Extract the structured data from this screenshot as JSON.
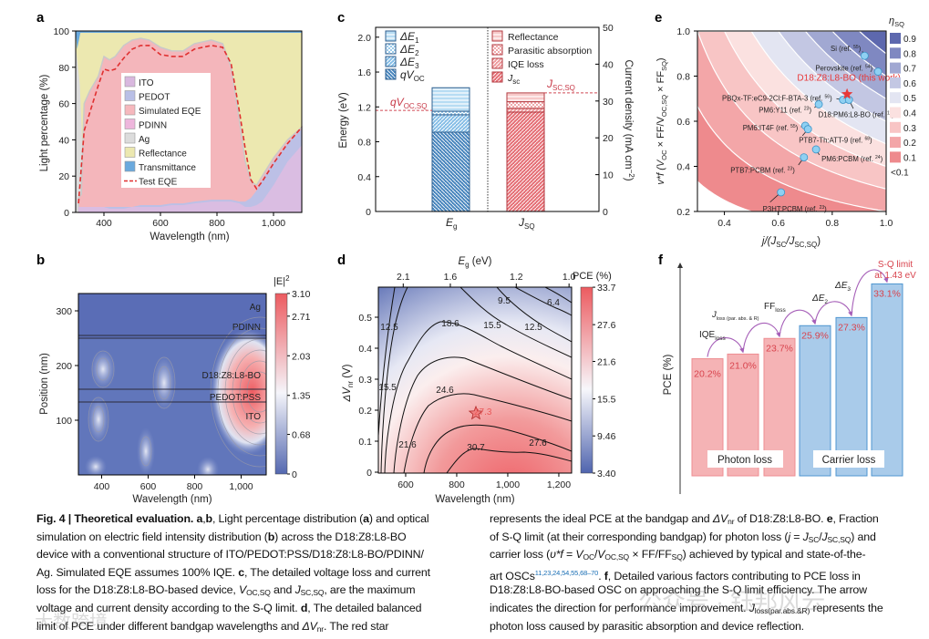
{
  "panels": {
    "a": "a",
    "b": "b",
    "c": "c",
    "d": "d",
    "e": "e",
    "f": "f"
  },
  "chart_data": [
    {
      "panel": "a",
      "type": "area",
      "xlabel": "Wavelength (nm)",
      "ylabel": "Light percentage (%)",
      "xlim": [
        300,
        1100
      ],
      "ylim": [
        0,
        100
      ],
      "xticks": [
        "400",
        "600",
        "800",
        "1,000"
      ],
      "xtick_values": [
        400,
        600,
        800,
        1000
      ],
      "yticks": [
        "0",
        "20",
        "40",
        "60",
        "80",
        "100"
      ],
      "ytick_values": [
        0,
        20,
        40,
        60,
        80,
        100
      ],
      "legend": [
        "ITO",
        "PEDOT",
        "Simulated EQE",
        "PDINN",
        "Ag",
        "Reflectance",
        "Transmittance",
        "Test EQE"
      ],
      "legend_colors": [
        "#d9b8df",
        "#b9bfe6",
        "#f6b8bd",
        "#eeb6dc",
        "#dcdcdc",
        "#ece8b0",
        "#6aa9dd",
        "#e03030"
      ],
      "x": [
        310,
        320,
        330,
        350,
        380,
        400,
        420,
        440,
        470,
        500,
        530,
        560,
        600,
        640,
        680,
        720,
        780,
        820,
        850,
        880,
        900,
        920,
        940,
        960,
        1000,
        1050,
        1100
      ],
      "series": [
        {
          "name": "Simulated EQE",
          "values": [
            8,
            10,
            60,
            67,
            75,
            86,
            84,
            86,
            92,
            95,
            96,
            95,
            91,
            89,
            89,
            93,
            95,
            93,
            80,
            50,
            28,
            17,
            15,
            20,
            30,
            40,
            47
          ]
        },
        {
          "name": "Test EQE",
          "values": [
            5,
            25,
            45,
            55,
            70,
            79,
            78,
            79,
            85,
            90,
            92,
            92,
            87,
            86,
            86,
            90,
            92,
            91,
            82,
            55,
            35,
            18,
            13,
            17,
            27,
            38,
            47
          ]
        },
        {
          "name": "PEDOT",
          "values": [
            3,
            3,
            3,
            3,
            3,
            3,
            3,
            3,
            3,
            3,
            4,
            4,
            4,
            5,
            5,
            6,
            7,
            7,
            7,
            6,
            6,
            8,
            12,
            18,
            28,
            38,
            46
          ]
        },
        {
          "name": "ITO",
          "values": [
            3,
            3,
            3,
            3,
            3,
            3,
            2,
            2,
            2,
            3,
            3,
            3,
            3,
            4,
            4,
            5,
            6,
            6,
            6,
            5,
            3,
            3,
            4,
            6,
            15,
            28,
            37
          ]
        },
        {
          "name": "Reflectance",
          "top": 99
        },
        {
          "name": "Transmittance",
          "top": 100
        }
      ]
    },
    {
      "panel": "b",
      "type": "heatmap",
      "xlabel": "Wavelength (nm)",
      "ylabel": "Position (nm)",
      "xticks": [
        "400",
        "600",
        "800",
        "1,000"
      ],
      "yticks": [
        "100",
        "200",
        "300"
      ],
      "colorbar_label": "|E|",
      "colorbar_sup": "2",
      "colorbar_ticks": [
        "3.10",
        "2.71",
        "2.03",
        "1.35",
        "0.68",
        "0"
      ],
      "colorbar_values": [
        3.1,
        2.71,
        2.03,
        1.35,
        0.68,
        0
      ],
      "layers": [
        "Ag",
        "PDINN",
        "D18:Z8:L8-BO",
        "PEDOT:PSS",
        "ITO"
      ],
      "layer_boundaries_nm": [
        255,
        250,
        157,
        133
      ],
      "max_region": {
        "wavelength": 1030,
        "position": 160,
        "value": 3.1
      }
    },
    {
      "panel": "c",
      "type": "bar",
      "ylabel": "Energy (eV)",
      "y2label": "Current density (mA cm",
      "y2label_sup": "−2",
      "y2label_end": ")",
      "yticks": [
        "0",
        "0.4",
        "0.8",
        "1.2",
        "1.6",
        "2.0"
      ],
      "ytick_values": [
        0,
        0.4,
        0.8,
        1.2,
        1.6,
        2.0
      ],
      "y2ticks": [
        "0",
        "10",
        "20",
        "30",
        "40",
        "50"
      ],
      "y2tick_values": [
        0,
        10,
        20,
        30,
        40,
        50
      ],
      "categories": [
        {
          "main": "E",
          "sub": "g"
        },
        {
          "main": "J",
          "sub": "SQ"
        }
      ],
      "energy_stack": [
        {
          "name": "qVOC",
          "main": "qV",
          "sub": "OC",
          "from": 0,
          "to": 0.91
        },
        {
          "name": "ΔE3",
          "main": "ΔE",
          "sub": "3",
          "from": 0.91,
          "to": 1.11
        },
        {
          "name": "ΔE2",
          "main": "ΔE",
          "sub": "2",
          "from": 1.11,
          "to": 1.15
        },
        {
          "name": "ΔE1",
          "main": "ΔE",
          "sub": "1",
          "from": 1.15,
          "to": 1.42
        }
      ],
      "current_stack": [
        {
          "name": "Jsc",
          "from": 0,
          "to": 27.0
        },
        {
          "name": "IQE loss",
          "from": 27.0,
          "to": 28.0
        },
        {
          "name": "Parasitic absorption",
          "from": 28.0,
          "to": 29.8
        },
        {
          "name": "Reflectance",
          "from": 29.8,
          "to": 32.2
        }
      ],
      "legend_left": [
        {
          "main": "ΔE",
          "sub": "1"
        },
        {
          "main": "ΔE",
          "sub": "2"
        },
        {
          "main": "ΔE",
          "sub": "3"
        },
        {
          "main": "qV",
          "sub": "OC"
        }
      ],
      "legend_right": [
        {
          "main": "Reflectance",
          "sub": ""
        },
        {
          "main": "Parasitic absorption",
          "sub": ""
        },
        {
          "main": "IQE loss",
          "sub": ""
        },
        {
          "main": "J",
          "sub": "sc"
        }
      ],
      "ref_lines": [
        {
          "main": "qV",
          "sub": "OC,SQ",
          "value": 1.16,
          "axis": "left"
        },
        {
          "main": "J",
          "sub": "SC,SQ",
          "value": 32.2,
          "axis": "right"
        }
      ]
    },
    {
      "panel": "d",
      "type": "heatmap",
      "xlabel": "Wavelength (nm)",
      "ylabel_main": "ΔV",
      "ylabel_sub": "nr",
      "ylabel_end": " (V)",
      "top_label_main": "E",
      "top_label_sub": "g",
      "top_label_end": " (eV)",
      "xticks": [
        "600",
        "800",
        "1,000",
        "1,200"
      ],
      "xtick_values": [
        600,
        800,
        1000,
        1200
      ],
      "yticks": [
        "0",
        "0.1",
        "0.2",
        "0.3",
        "0.4",
        "0.5"
      ],
      "ytick_values": [
        0,
        0.1,
        0.2,
        0.3,
        0.4,
        0.5
      ],
      "top_ticks": [
        "2.1",
        "1.6",
        "1.2",
        "1.0"
      ],
      "top_tick_values": [
        2.1,
        1.6,
        1.2,
        1.0
      ],
      "colorbar_label": "PCE (%)",
      "colorbar_ticks": [
        "33.7",
        "27.6",
        "21.6",
        "15.5",
        "9.46",
        "3.40"
      ],
      "colorbar_values": [
        33.7,
        27.6,
        21.6,
        15.5,
        9.46,
        3.4
      ],
      "contour_labels": [
        "12.5",
        "18.6",
        "15.5",
        "12.5",
        "9.5",
        "6.4",
        "15.5",
        "24.6",
        "21.6",
        "30.7",
        "27.6"
      ],
      "star": {
        "wavelength": 875,
        "dVnr": 0.19,
        "label": "27.3"
      }
    },
    {
      "panel": "e",
      "type": "scatter",
      "xlabel_main": "j/(J",
      "xlabel_sub1": "SC",
      "xlabel_mid": "/J",
      "xlabel_sub2": "SC,SQ",
      "xlabel_end": ")",
      "ylabel": "v*f (V",
      "ylabel_sub1": "OC",
      "ylabel_mid": " × FF/V",
      "ylabel_sub2": "OC,SQ",
      "ylabel_mid2": " × FF",
      "ylabel_sub3": "SQ",
      "ylabel_end": ")",
      "xlim": [
        0.3,
        1.0
      ],
      "ylim": [
        0.2,
        1.0
      ],
      "xticks": [
        "0.4",
        "0.6",
        "0.8",
        "1.0"
      ],
      "xtick_values": [
        0.4,
        0.6,
        0.8,
        1.0
      ],
      "yticks": [
        "0.2",
        "0.4",
        "0.6",
        "0.8",
        "1.0"
      ],
      "ytick_values": [
        0.2,
        0.4,
        0.6,
        0.8,
        1.0
      ],
      "legend_title_main": "η",
      "legend_title_sub": "SQ",
      "levels": [
        "0.9",
        "0.8",
        "0.7",
        "0.6",
        "0.5",
        "0.4",
        "0.3",
        "0.2",
        "0.1",
        "<0.1"
      ],
      "level_values": [
        0.9,
        0.8,
        0.7,
        0.6,
        0.5,
        0.4,
        0.3,
        0.2,
        0.1
      ],
      "level_colors": [
        "#5d68ae",
        "#7f88c1",
        "#a1a8d2",
        "#c3c7e3",
        "#e3e5f2",
        "#fbe1e0",
        "#f8c5c5",
        "#f3a6a8",
        "#ee8a8d"
      ],
      "highlight": {
        "label": "D18:Z8:L8-BO (this work)",
        "j": 0.855,
        "vf": 0.72,
        "color": "#e83838"
      },
      "points": [
        {
          "name": "Si",
          "ref": "55",
          "j": 0.92,
          "vf": 0.89
        },
        {
          "name": "Perovskite",
          "ref": "54",
          "j": 0.97,
          "vf": 0.82
        },
        {
          "name": "PBQx-TF:eC9-2Cl:F-BTA-3",
          "ref": "56",
          "j": 0.84,
          "vf": 0.695
        },
        {
          "name": "D18:PM6:L8-BO",
          "ref": "11",
          "j": 0.862,
          "vf": 0.695
        },
        {
          "name": "PM6:Y11",
          "ref": "23",
          "j": 0.75,
          "vf": 0.675
        },
        {
          "name": "PM6:IT4F",
          "ref": "55",
          "j": 0.7,
          "vf": 0.58
        },
        {
          "name": "PTB7-Th:ATT-9",
          "ref": "68",
          "j": 0.71,
          "vf": 0.565
        },
        {
          "name": "PM6:PCBM",
          "ref": "24",
          "j": 0.74,
          "vf": 0.475
        },
        {
          "name": "PTB7:PCBM",
          "ref": "23",
          "j": 0.695,
          "vf": 0.44
        },
        {
          "name": "P3HT:PCBM",
          "ref": "23",
          "j": 0.61,
          "vf": 0.285
        }
      ]
    },
    {
      "panel": "f",
      "type": "bar",
      "ylabel": "PCE (%)",
      "values": [
        20.2,
        21.0,
        23.7,
        25.9,
        27.3,
        33.1
      ],
      "labels": [
        "20.2%",
        "21.0%",
        "23.7%",
        "25.9%",
        "27.3%",
        "33.1%"
      ],
      "groups": [
        "photon",
        "photon",
        "photon",
        "carrier",
        "carrier",
        "carrier"
      ],
      "group_labels": [
        "Photon loss",
        "Carrier loss"
      ],
      "colors": {
        "photon": "#f5b3b5",
        "carrier": "#a9cbea",
        "photon_edge": "#ee8d92",
        "carrier_edge": "#4f96d0",
        "value": "#d8434d",
        "arrow": "#a65fb8"
      },
      "steps": [
        {
          "main": "IQE",
          "sub": "loss"
        },
        {
          "main": "J",
          "sub": "loss (par. abs. & R)"
        },
        {
          "main": "FF",
          "sub": "loss"
        },
        {
          "main": "ΔE",
          "sub": "2"
        },
        {
          "main": "ΔE",
          "sub": "3"
        }
      ],
      "limit_label": [
        "S-Q limit",
        "at 1.43 eV"
      ]
    }
  ],
  "caption": {
    "left": [
      [
        [
          "b",
          "Fig. 4 | Theoretical evaluation. a"
        ],
        [
          "",
          ","
        ],
        [
          "b",
          "b"
        ],
        [
          "",
          ", Light percentage distribution ("
        ],
        [
          "b",
          "a"
        ],
        [
          "",
          ") and optical"
        ]
      ],
      [
        [
          "",
          "simulation on electric field intensity distribution ("
        ],
        [
          "b",
          "b"
        ],
        [
          "",
          ") across the D18:Z8:L8-BO"
        ]
      ],
      [
        [
          "",
          "device with a conventional structure of ITO/PEDOT:PSS/D18:Z8:L8-BO/PDINN/"
        ]
      ],
      [
        [
          "",
          "Ag. Simulated EQE assumes 100% IQE. "
        ],
        [
          "b",
          "c"
        ],
        [
          "",
          ", The detailed voltage loss and current"
        ]
      ],
      [
        [
          "",
          "loss for the D18:Z8:L8-BO-based device, "
        ],
        [
          "i",
          "V"
        ],
        [
          "sub",
          "OC,SQ"
        ],
        [
          "",
          " and "
        ],
        [
          "i",
          "J"
        ],
        [
          "sub",
          "SC,SQ"
        ],
        [
          "",
          ", are the maximum"
        ]
      ],
      [
        [
          "",
          "voltage and current density according to the S-Q limit. "
        ],
        [
          "b",
          "d"
        ],
        [
          "",
          ", The detailed balanced"
        ]
      ],
      [
        [
          "",
          "limit of PCE under different bandgap wavelengths and "
        ],
        [
          "i",
          "ΔV"
        ],
        [
          "sub",
          "nr"
        ],
        [
          "",
          ". The red star"
        ]
      ]
    ],
    "right": [
      [
        [
          "",
          "represents the ideal PCE at the bandgap and "
        ],
        [
          "i",
          "ΔV"
        ],
        [
          "sub",
          "nr"
        ],
        [
          "",
          " of D18:Z8:L8-BO. "
        ],
        [
          "b",
          "e"
        ],
        [
          "",
          ", Fraction"
        ]
      ],
      [
        [
          "",
          "of S-Q limit (at their corresponding bandgap) for photon loss ("
        ],
        [
          "i",
          "j"
        ],
        [
          "",
          " = "
        ],
        [
          "i",
          "J"
        ],
        [
          "sub",
          "SC"
        ],
        [
          "",
          "/"
        ],
        [
          "i",
          "J"
        ],
        [
          "sub",
          "SC,SQ"
        ],
        [
          "",
          ") and"
        ]
      ],
      [
        [
          "",
          "carrier loss ("
        ],
        [
          "i",
          "υ*f"
        ],
        [
          "",
          " = "
        ],
        [
          "i",
          "V"
        ],
        [
          "sub",
          "OC"
        ],
        [
          "",
          "/"
        ],
        [
          "i",
          "V"
        ],
        [
          "sub",
          "OC,SQ"
        ],
        [
          "",
          " × FF/FF"
        ],
        [
          "sub",
          "SQ"
        ],
        [
          "",
          ") achieved by typical and state-of-the-"
        ]
      ],
      [
        [
          "",
          "art OSCs"
        ],
        [
          "sup",
          "11,23,24,54,55,68–70"
        ],
        [
          "",
          ". "
        ],
        [
          "b",
          "f"
        ],
        [
          "",
          ", Detailed various factors contributing to PCE loss in"
        ]
      ],
      [
        [
          "",
          "D18:Z8:L8-BO-based OSC on approaching the S-Q limit efficiency. The arrow"
        ]
      ],
      [
        [
          "",
          "indicates the direction for performance improvement. "
        ],
        [
          "i",
          "J"
        ],
        [
          "sub",
          "loss(par.abs.&R)"
        ],
        [
          "",
          " represents the"
        ]
      ],
      [
        [
          "",
          "photon loss caused by parasitic absorption and device reflection."
        ]
      ]
    ]
  },
  "watermark": {
    "text": "公众号 · 钰邦风云",
    "corner": "大数跨境"
  }
}
